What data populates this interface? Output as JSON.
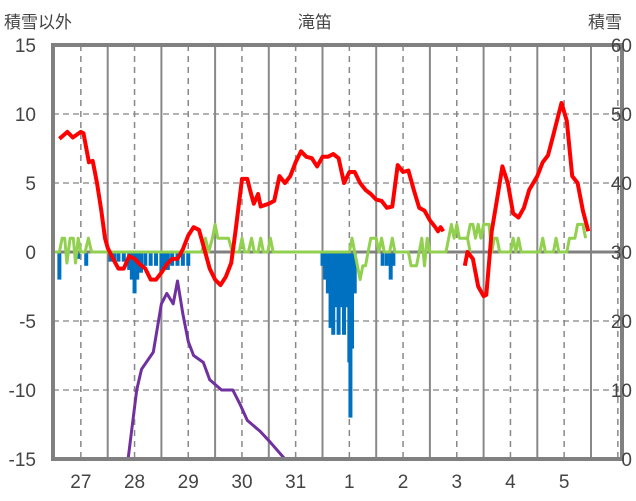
{
  "chart_data": {
    "type": "line",
    "title": "滝笛",
    "ylabel_left": "積雪以外",
    "ylabel_right": "積雪",
    "ylim_left": [
      -15,
      15
    ],
    "ylim_right": [
      0,
      60
    ],
    "yticks_left": [
      "15",
      "10",
      "5",
      "0",
      "-5",
      "-10",
      "-15"
    ],
    "yticks_right": [
      "60",
      "50",
      "40",
      "30",
      "20",
      "10",
      "0"
    ],
    "xlim_days": [
      0,
      10.6
    ],
    "xtick_labels": [
      "27",
      "28",
      "29",
      "30",
      "31",
      "1",
      "2",
      "3",
      "4",
      "5"
    ],
    "grid": true,
    "series": [
      {
        "name": "temperature",
        "axis": "left",
        "type": "line",
        "color": "#ff0000",
        "points": [
          [
            0.1,
            8.2
          ],
          [
            0.25,
            8.7
          ],
          [
            0.35,
            8.3
          ],
          [
            0.5,
            8.7
          ],
          [
            0.55,
            8.6
          ],
          [
            0.65,
            6.5
          ],
          [
            0.72,
            6.6
          ],
          [
            0.8,
            5
          ],
          [
            0.88,
            3
          ],
          [
            0.95,
            1
          ],
          [
            1.0,
            0.3
          ],
          [
            1.1,
            -0.5
          ],
          [
            1.2,
            -1.2
          ],
          [
            1.3,
            -1.2
          ],
          [
            1.4,
            -0.3
          ],
          [
            1.5,
            -0.5
          ],
          [
            1.6,
            -0.9
          ],
          [
            1.7,
            -1.2
          ],
          [
            1.8,
            -2
          ],
          [
            1.9,
            -2
          ],
          [
            2.0,
            -1.5
          ],
          [
            2.1,
            -0.9
          ],
          [
            2.2,
            -0.5
          ],
          [
            2.3,
            -0.5
          ],
          [
            2.4,
            0.2
          ],
          [
            2.5,
            1.2
          ],
          [
            2.6,
            1.8
          ],
          [
            2.7,
            1.6
          ],
          [
            2.8,
            0.2
          ],
          [
            2.9,
            -1.2
          ],
          [
            3.0,
            -2
          ],
          [
            3.1,
            -2.4
          ],
          [
            3.2,
            -1.8
          ],
          [
            3.3,
            -0.8
          ],
          [
            3.38,
            1.5
          ],
          [
            3.5,
            5.3
          ],
          [
            3.6,
            5.3
          ],
          [
            3.65,
            4.5
          ],
          [
            3.72,
            3.5
          ],
          [
            3.8,
            4.2
          ],
          [
            3.85,
            3.3
          ],
          [
            4.0,
            3.5
          ],
          [
            4.1,
            3.7
          ],
          [
            4.2,
            5.5
          ],
          [
            4.3,
            5.0
          ],
          [
            4.4,
            5.5
          ],
          [
            4.5,
            6.5
          ],
          [
            4.6,
            7.3
          ],
          [
            4.7,
            6.9
          ],
          [
            4.8,
            6.8
          ],
          [
            4.9,
            6.2
          ],
          [
            5.0,
            6.9
          ],
          [
            5.1,
            6.9
          ],
          [
            5.2,
            7.1
          ],
          [
            5.3,
            6.8
          ],
          [
            5.4,
            5
          ],
          [
            5.5,
            5.8
          ],
          [
            5.6,
            5.8
          ],
          [
            5.7,
            5.0
          ],
          [
            5.8,
            4.5
          ],
          [
            5.9,
            4.2
          ],
          [
            6.0,
            3.8
          ],
          [
            6.1,
            3.7
          ],
          [
            6.2,
            3.2
          ],
          [
            6.3,
            3.3
          ],
          [
            6.4,
            6.3
          ],
          [
            6.5,
            5.8
          ],
          [
            6.6,
            5.9
          ],
          [
            6.7,
            4.5
          ],
          [
            6.8,
            3.2
          ],
          [
            6.9,
            3.0
          ],
          [
            7.0,
            2.3
          ],
          [
            7.1,
            1.8
          ],
          [
            7.15,
            1.5
          ],
          [
            7.2,
            1.8
          ],
          [
            7.25,
            1.5
          ],
          null,
          [
            7.65,
            -1.0
          ],
          [
            7.7,
            0
          ],
          [
            7.8,
            -0.5
          ],
          [
            7.9,
            -2.5
          ],
          [
            8.0,
            -3.2
          ],
          [
            8.05,
            -3.1
          ],
          [
            8.15,
            1.5
          ],
          [
            8.25,
            3.8
          ],
          [
            8.35,
            6.2
          ],
          [
            8.45,
            5
          ],
          [
            8.55,
            2.8
          ],
          [
            8.65,
            2.5
          ],
          [
            8.75,
            3.2
          ],
          [
            8.85,
            4.5
          ],
          [
            9.0,
            5.5
          ],
          [
            9.1,
            6.5
          ],
          [
            9.2,
            7
          ],
          [
            9.3,
            8.5
          ],
          [
            9.45,
            10.8
          ],
          [
            9.55,
            9.5
          ],
          [
            9.65,
            5.5
          ],
          [
            9.75,
            5
          ],
          [
            9.85,
            3
          ],
          [
            9.95,
            1.5
          ]
        ]
      },
      {
        "name": "green-series",
        "axis": "left",
        "type": "line",
        "color": "#92d050",
        "points": [
          [
            0,
            0
          ],
          [
            0.1,
            0
          ],
          [
            0.15,
            1
          ],
          [
            0.2,
            1
          ],
          [
            0.24,
            -0.8
          ],
          [
            0.3,
            1
          ],
          [
            0.36,
            1
          ],
          [
            0.4,
            -0.8
          ],
          [
            0.45,
            1
          ],
          [
            0.5,
            0
          ],
          [
            0.58,
            0
          ],
          [
            0.64,
            1
          ],
          [
            0.7,
            0
          ],
          [
            2.75,
            0
          ],
          [
            2.82,
            1
          ],
          [
            2.88,
            0
          ],
          [
            2.95,
            1
          ],
          [
            3.0,
            2
          ],
          [
            3.05,
            1
          ],
          [
            3.25,
            1
          ],
          [
            3.32,
            0
          ],
          [
            3.45,
            0
          ],
          [
            3.5,
            1
          ],
          [
            3.55,
            0
          ],
          [
            3.62,
            0
          ],
          [
            3.68,
            1
          ],
          [
            3.73,
            0
          ],
          [
            3.8,
            0
          ],
          [
            3.85,
            1
          ],
          [
            3.9,
            0
          ],
          [
            3.98,
            0
          ],
          [
            4.03,
            1
          ],
          [
            4.08,
            0
          ],
          [
            5.5,
            0
          ],
          [
            5.55,
            1
          ],
          [
            5.6,
            0
          ],
          [
            5.65,
            -1
          ],
          [
            5.7,
            -2
          ],
          [
            5.75,
            -1
          ],
          [
            5.8,
            -1
          ],
          [
            5.85,
            0
          ],
          [
            5.9,
            1
          ],
          [
            6.0,
            1
          ],
          [
            6.05,
            0
          ],
          [
            6.1,
            1
          ],
          [
            6.15,
            0
          ],
          [
            6.25,
            0
          ],
          [
            6.3,
            1
          ],
          [
            6.35,
            0
          ],
          [
            6.6,
            0
          ],
          [
            6.65,
            -1
          ],
          [
            6.7,
            -1
          ],
          [
            6.75,
            -1
          ],
          [
            6.8,
            0
          ],
          [
            6.85,
            1
          ],
          [
            6.9,
            -1
          ],
          [
            6.95,
            1
          ],
          [
            7.0,
            0
          ],
          [
            7.3,
            0
          ],
          [
            7.35,
            1
          ],
          [
            7.4,
            2
          ],
          [
            7.45,
            1
          ],
          [
            7.5,
            2
          ],
          [
            7.55,
            1
          ],
          [
            7.7,
            1
          ],
          [
            7.75,
            0
          ]
        ]
      },
      {
        "name": "green-series-b",
        "axis": "left",
        "type": "line",
        "color": "#92d050",
        "points": [
          [
            7.65,
            1
          ],
          [
            7.7,
            1
          ],
          [
            7.75,
            2
          ],
          [
            7.8,
            2
          ],
          [
            7.85,
            1
          ],
          [
            7.9,
            2
          ],
          [
            7.95,
            1
          ],
          [
            8.0,
            2
          ],
          [
            8.1,
            2
          ],
          [
            8.15,
            0
          ],
          [
            8.2,
            1
          ],
          [
            8.25,
            1
          ],
          [
            8.3,
            0
          ],
          [
            8.5,
            0
          ],
          [
            8.55,
            1
          ],
          [
            8.6,
            0
          ],
          [
            8.65,
            1
          ],
          [
            8.7,
            0
          ],
          [
            9.05,
            0
          ],
          [
            9.1,
            1
          ],
          [
            9.15,
            0
          ],
          [
            9.3,
            0
          ],
          [
            9.35,
            1
          ],
          [
            9.4,
            0
          ],
          [
            9.55,
            0
          ],
          [
            9.6,
            1
          ],
          [
            9.7,
            1
          ],
          [
            9.75,
            2
          ],
          [
            9.85,
            2
          ],
          [
            9.9,
            1
          ]
        ]
      },
      {
        "name": "blue-bars",
        "axis": "left",
        "type": "bar",
        "color": "#0070c0",
        "points": [
          [
            0.1,
            -2
          ],
          [
            0.45,
            -0.5
          ],
          [
            0.6,
            -1
          ],
          [
            1.05,
            -0.7
          ],
          [
            1.12,
            -0.7
          ],
          [
            1.2,
            -0.7
          ],
          [
            1.3,
            -0.7
          ],
          [
            1.4,
            -1.3
          ],
          [
            1.45,
            -2
          ],
          [
            1.5,
            -3
          ],
          [
            1.55,
            -2
          ],
          [
            1.62,
            -1.5
          ],
          [
            1.7,
            -1
          ],
          [
            1.8,
            -1
          ],
          [
            1.9,
            -1
          ],
          [
            2.0,
            -1.5
          ],
          [
            2.05,
            -1
          ],
          [
            2.12,
            -1.3
          ],
          [
            2.2,
            -1
          ],
          [
            2.3,
            -1
          ],
          [
            2.4,
            -1
          ],
          [
            2.5,
            -1
          ],
          [
            5.0,
            -1
          ],
          [
            5.05,
            -2
          ],
          [
            5.1,
            -3
          ],
          [
            5.15,
            -5.5
          ],
          [
            5.2,
            -6
          ],
          [
            5.25,
            -4
          ],
          [
            5.3,
            -6
          ],
          [
            5.35,
            -4
          ],
          [
            5.4,
            -6
          ],
          [
            5.45,
            -4
          ],
          [
            5.5,
            -8
          ],
          [
            5.52,
            -12
          ],
          [
            5.55,
            -7
          ],
          [
            5.6,
            -3
          ],
          [
            6.12,
            -1
          ],
          [
            6.2,
            -1
          ],
          [
            6.27,
            -2
          ],
          [
            6.32,
            -1
          ]
        ]
      },
      {
        "name": "snow-depth",
        "axis": "right",
        "type": "line",
        "color": "#7030a0",
        "points": [
          [
            0.1,
            0
          ],
          [
            1.38,
            0
          ],
          [
            1.54,
            10
          ],
          [
            1.63,
            13
          ],
          [
            1.85,
            15.5
          ],
          [
            2.0,
            22.5
          ],
          [
            2.1,
            24
          ],
          [
            2.22,
            22.5
          ],
          [
            2.3,
            25.8
          ],
          [
            2.4,
            21
          ],
          [
            2.5,
            17
          ],
          [
            2.6,
            15
          ],
          [
            2.78,
            14
          ],
          [
            2.9,
            11.5
          ],
          [
            3.12,
            10
          ],
          [
            3.33,
            10
          ],
          [
            3.46,
            8
          ],
          [
            3.6,
            5.6
          ],
          [
            3.84,
            4
          ],
          [
            4.02,
            2.5
          ],
          [
            4.3,
            0
          ],
          [
            7.25,
            0
          ],
          null,
          [
            7.65,
            0
          ],
          [
            10.5,
            0
          ]
        ]
      }
    ]
  }
}
